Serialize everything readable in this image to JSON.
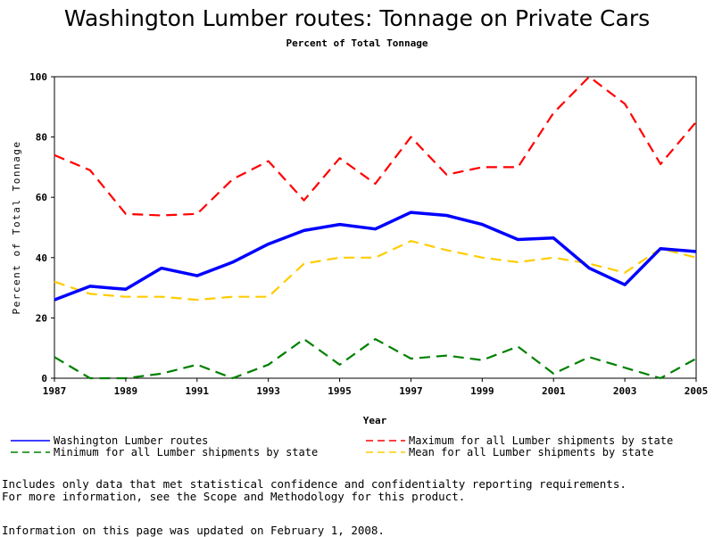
{
  "chart_data": {
    "type": "line",
    "title": "Washington Lumber routes: Tonnage on Private Cars",
    "subtitle": "Percent of Total Tonnage",
    "xlabel": "Year",
    "ylabel": "Percent of Total Tonnage",
    "xlim": [
      1987,
      2005
    ],
    "ylim": [
      0,
      100
    ],
    "xticks": [
      "1987",
      "1989",
      "1991",
      "1993",
      "1995",
      "1997",
      "1999",
      "2001",
      "2003",
      "2005"
    ],
    "yticks": [
      "0",
      "20",
      "40",
      "60",
      "80",
      "100"
    ],
    "x": [
      1987,
      1988,
      1989,
      1990,
      1991,
      1992,
      1993,
      1994,
      1995,
      1996,
      1997,
      1998,
      1999,
      2000,
      2001,
      2002,
      2003,
      2004,
      2005
    ],
    "series": [
      {
        "name": "Washington Lumber routes",
        "color": "#0000ff",
        "style": "solid",
        "values": [
          26,
          30.5,
          29.5,
          36.5,
          34,
          38.5,
          44.5,
          49,
          51,
          49.5,
          55,
          54,
          51,
          46,
          46.5,
          36.5,
          31,
          43,
          42
        ]
      },
      {
        "name": "Maximum for all Lumber shipments by state",
        "color": "#ff0000",
        "style": "dashed",
        "values": [
          74,
          69,
          54.5,
          54,
          54.5,
          66,
          72,
          59,
          73,
          64.5,
          80,
          67.5,
          70,
          70,
          88,
          100,
          91,
          71,
          85
        ]
      },
      {
        "name": "Minimum for all Lumber shipments by state",
        "color": "#008000",
        "style": "dashed",
        "values": [
          7,
          0,
          0,
          1.5,
          4.5,
          0,
          4.5,
          13,
          4.5,
          13,
          6.5,
          7.5,
          6,
          10.5,
          1.5,
          7,
          3.5,
          0,
          6.5
        ]
      },
      {
        "name": "Mean for all Lumber shipments by state",
        "color": "#ffcc00",
        "style": "dashed",
        "values": [
          32,
          28,
          27,
          27,
          26,
          27,
          27,
          38,
          40,
          40,
          45.5,
          42.5,
          40,
          38.5,
          40,
          38,
          35,
          43,
          40
        ]
      }
    ]
  },
  "legend": [
    {
      "label": "Washington Lumber routes",
      "color": "#0000ff",
      "style": "solid"
    },
    {
      "label": "Maximum for all Lumber shipments by state",
      "color": "#ff0000",
      "style": "dashed"
    },
    {
      "label": "Minimum for all Lumber shipments by state",
      "color": "#008000",
      "style": "dashed"
    },
    {
      "label": "Mean for all Lumber shipments by state",
      "color": "#ffcc00",
      "style": "dashed"
    }
  ],
  "notes": {
    "line1": "Includes only data that met statistical confidence and confidentialty reporting requirements.",
    "line2": "For more information, see the Scope and Methodology for this product.",
    "updated": "Information on this page was updated on February 1, 2008."
  }
}
